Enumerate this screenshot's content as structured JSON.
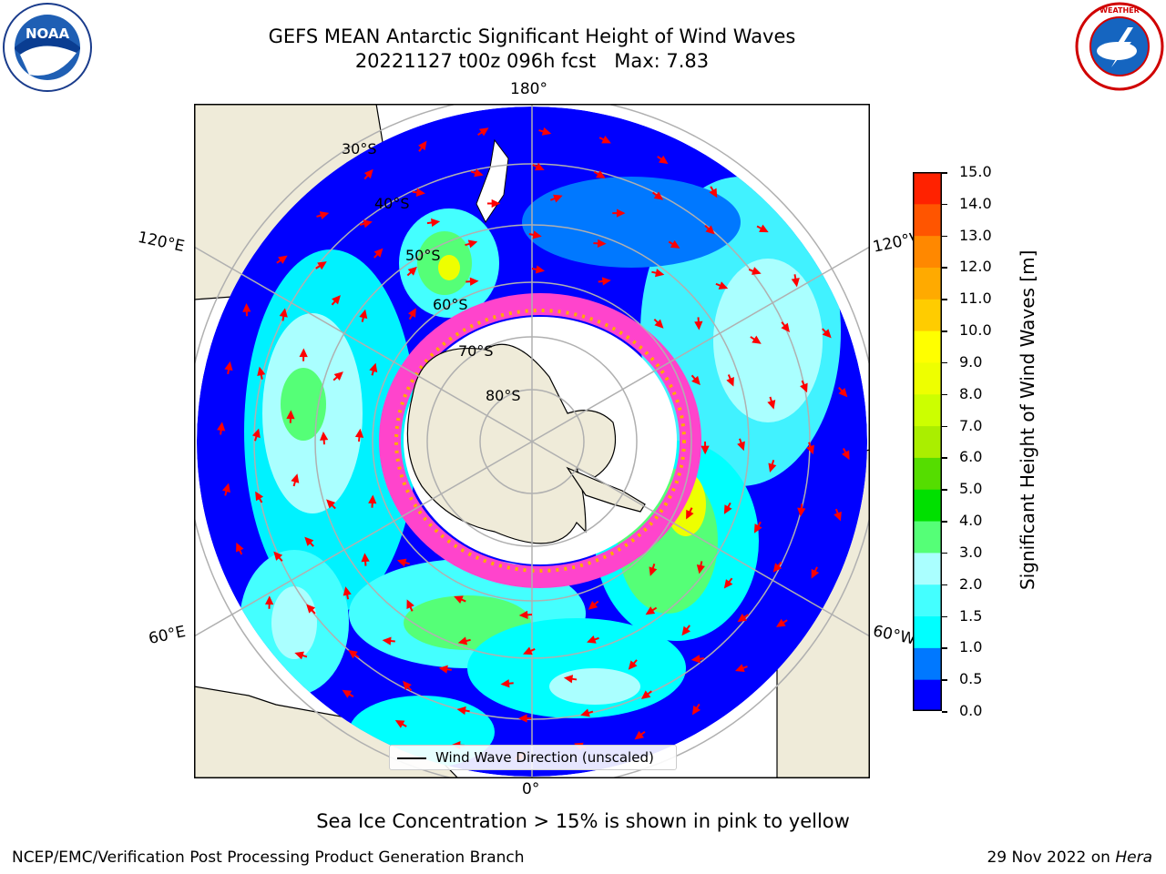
{
  "header": {
    "title_line1": "GEFS MEAN Antarctic Significant Height of Wind Waves",
    "title_line2": "20221127 t00z 096h fcst   Max: 7.83"
  },
  "logos": {
    "left": {
      "icon": "noaa-logo",
      "text": "NOAA"
    },
    "right": {
      "icon": "nws-logo",
      "text": "NATIONAL WEATHER SERVICE"
    }
  },
  "map": {
    "projection": "south-polar-stereographic",
    "longitude_labels": {
      "top": "180°",
      "bottom": "0°",
      "upper_left": "120°E",
      "upper_right": "120°W",
      "lower_left": "60°E",
      "lower_right": "60°W"
    },
    "latitude_labels": [
      "30°S",
      "40°S",
      "50°S",
      "60°S",
      "70°S",
      "80°S"
    ],
    "legend_label": "Wind Wave Direction (unscaled)",
    "colors": {
      "land": "#efebd9",
      "open_ocean_low": "#0000ff",
      "sea_ice": "#ff44cc",
      "arrows": "#ff0000",
      "graticule": "#b0b0b0"
    }
  },
  "colorbar": {
    "label": "Significant Height of Wind Waves [m]",
    "ticks": [
      "0.0",
      "0.5",
      "1.0",
      "1.5",
      "2.0",
      "3.0",
      "4.0",
      "5.0",
      "6.0",
      "7.0",
      "8.0",
      "9.0",
      "10.0",
      "11.0",
      "12.0",
      "13.0",
      "14.0",
      "15.0"
    ],
    "colors": [
      "#0000ff",
      "#0078ff",
      "#00ffff",
      "#44ffff",
      "#aaffff",
      "#55ff77",
      "#00e000",
      "#55dd00",
      "#aaee00",
      "#ccff00",
      "#eeff00",
      "#ffff00",
      "#ffcc00",
      "#ffaa00",
      "#ff8800",
      "#ff5500",
      "#ff2200"
    ]
  },
  "note": "Sea Ice Concentration > 15% is shown in pink to yellow",
  "footer": {
    "left": "NCEP/EMC/Verification Post Processing Product Generation Branch",
    "right_prefix": "29 Nov 2022 on ",
    "right_machine": "Hera"
  }
}
